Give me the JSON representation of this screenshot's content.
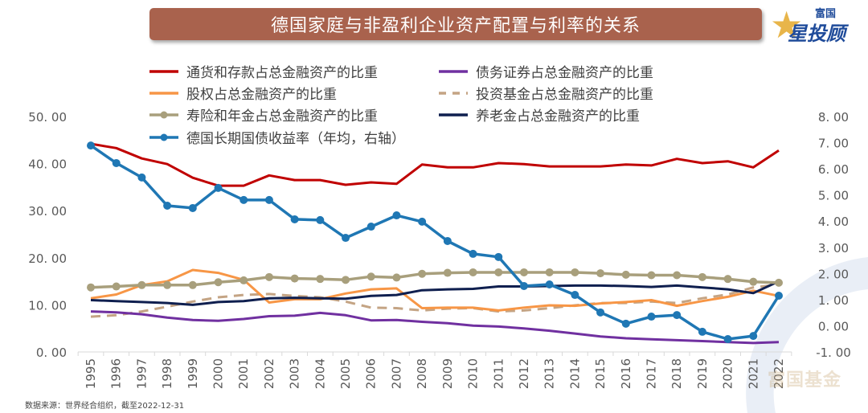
{
  "header": {
    "title": "德国家庭与非盈利企业资产配置与利率的关系",
    "logo_top": "富国",
    "logo_main": "星投顾"
  },
  "footer": {
    "source": "数据来源：世界经合组织，截至2022-12-31",
    "watermark": "富国基金"
  },
  "colors": {
    "title_bg": "#a9624d"
  },
  "chart_data": {
    "type": "line",
    "title": "德国家庭与非盈利企业资产配置与利率的关系",
    "xlabel": "",
    "ylabel": "",
    "y2label": "",
    "ylim": [
      0,
      50
    ],
    "y2lim": [
      -1,
      8
    ],
    "yticks": [
      "0.00",
      "10.00",
      "20.00",
      "30.00",
      "40.00",
      "50.00"
    ],
    "y2ticks": [
      "-1.00",
      "0.00",
      "1.00",
      "2.00",
      "3.00",
      "4.00",
      "5.00",
      "6.00",
      "7.00",
      "8.00"
    ],
    "grid": false,
    "legend_position": "top",
    "x": [
      "1995",
      "1996",
      "1997",
      "1998",
      "1999",
      "2000",
      "2001",
      "2002",
      "2003",
      "2004",
      "2005",
      "2006",
      "2007",
      "2008",
      "2009",
      "2010",
      "2011",
      "2012",
      "2013",
      "2014",
      "2015",
      "2016",
      "2017",
      "2018",
      "2019",
      "2020",
      "2021",
      "2022"
    ],
    "series": [
      {
        "name": "通货和存款占总金融资产的比重",
        "axis": "left",
        "color": "#c00000",
        "style": "solid",
        "marker": false,
        "values": [
          44.2,
          43.3,
          41.1,
          39.9,
          37.0,
          35.3,
          35.3,
          37.5,
          36.5,
          36.5,
          35.5,
          36.0,
          35.7,
          39.8,
          39.2,
          39.2,
          40.1,
          39.9,
          39.4,
          39.4,
          39.4,
          39.8,
          39.6,
          41.0,
          40.1,
          40.5,
          39.2,
          42.8
        ]
      },
      {
        "name": "债务证券占总金融资产的比重",
        "axis": "left",
        "color": "#7030a0",
        "style": "solid",
        "marker": false,
        "values": [
          8.6,
          8.4,
          8.0,
          7.3,
          6.8,
          6.6,
          7.0,
          7.6,
          7.7,
          8.3,
          7.8,
          6.7,
          6.8,
          6.4,
          6.1,
          5.6,
          5.4,
          5.0,
          4.5,
          3.9,
          3.3,
          2.9,
          2.7,
          2.5,
          2.3,
          2.1,
          1.9,
          2.1
        ]
      },
      {
        "name": "股权占总金融资产的比重",
        "axis": "left",
        "color": "#f79646",
        "style": "solid",
        "marker": false,
        "values": [
          11.4,
          12.2,
          14.2,
          15.0,
          17.4,
          16.8,
          15.3,
          10.5,
          11.2,
          11.2,
          12.4,
          13.3,
          13.5,
          9.3,
          9.4,
          9.4,
          8.8,
          9.4,
          9.9,
          9.8,
          10.3,
          10.6,
          11.0,
          9.8,
          10.8,
          11.7,
          13.0,
          11.9
        ]
      },
      {
        "name": "投资基金占总金融资产的比重",
        "axis": "left",
        "color": "#c4a484",
        "style": "dashed",
        "marker": false,
        "values": [
          7.5,
          7.8,
          8.6,
          9.6,
          10.7,
          11.6,
          12.1,
          12.3,
          11.9,
          11.6,
          10.7,
          9.4,
          9.3,
          8.8,
          9.2,
          9.3,
          8.6,
          8.8,
          9.3,
          9.9,
          10.4,
          10.4,
          10.7,
          10.4,
          11.4,
          12.2,
          13.7,
          14.3
        ]
      },
      {
        "name": "寿险和年金占总金融资产的比重",
        "axis": "left",
        "color": "#a89f7c",
        "style": "solid",
        "marker": true,
        "values": [
          13.7,
          13.9,
          14.2,
          14.2,
          14.2,
          14.8,
          15.2,
          15.9,
          15.6,
          15.5,
          15.3,
          16.0,
          15.8,
          16.6,
          16.8,
          16.9,
          16.9,
          16.9,
          16.9,
          16.9,
          16.7,
          16.4,
          16.3,
          16.3,
          15.9,
          15.5,
          14.9,
          14.7
        ]
      },
      {
        "name": "养老金占总金融资产的比重",
        "axis": "left",
        "color": "#0f1f4f",
        "style": "solid",
        "marker": false,
        "values": [
          11.0,
          10.8,
          10.6,
          10.4,
          10.0,
          10.6,
          10.8,
          11.4,
          11.5,
          11.4,
          11.3,
          11.9,
          12.1,
          13.1,
          13.3,
          13.4,
          13.9,
          13.9,
          14.0,
          14.1,
          14.1,
          14.0,
          13.8,
          14.1,
          13.7,
          13.3,
          12.5,
          15.0
        ]
      },
      {
        "name": "德国长期国债收益率（年均，右轴）",
        "axis": "right",
        "color": "#1f77b4",
        "style": "solid",
        "marker": true,
        "values": [
          6.89,
          6.22,
          5.67,
          4.59,
          4.5,
          5.27,
          4.81,
          4.81,
          4.07,
          4.04,
          3.36,
          3.79,
          4.22,
          3.98,
          3.24,
          2.75,
          2.63,
          1.52,
          1.58,
          1.18,
          0.51,
          0.08,
          0.35,
          0.41,
          -0.23,
          -0.51,
          -0.39,
          1.15
        ]
      }
    ]
  }
}
